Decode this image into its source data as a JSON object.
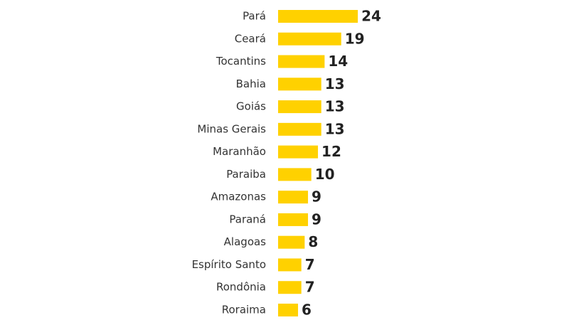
{
  "chart_data": {
    "type": "bar",
    "orientation": "horizontal",
    "categories": [
      "Pará",
      "Ceará",
      "Tocantins",
      "Bahia",
      "Goiás",
      "Minas Gerais",
      "Maranhão",
      "Paraiba",
      "Amazonas",
      "Paraná",
      "Alagoas",
      "Espírito Santo",
      "Rondônia",
      "Roraima"
    ],
    "values": [
      24,
      19,
      14,
      13,
      13,
      13,
      12,
      10,
      9,
      9,
      8,
      7,
      7,
      6
    ],
    "color": "#ffd100"
  }
}
